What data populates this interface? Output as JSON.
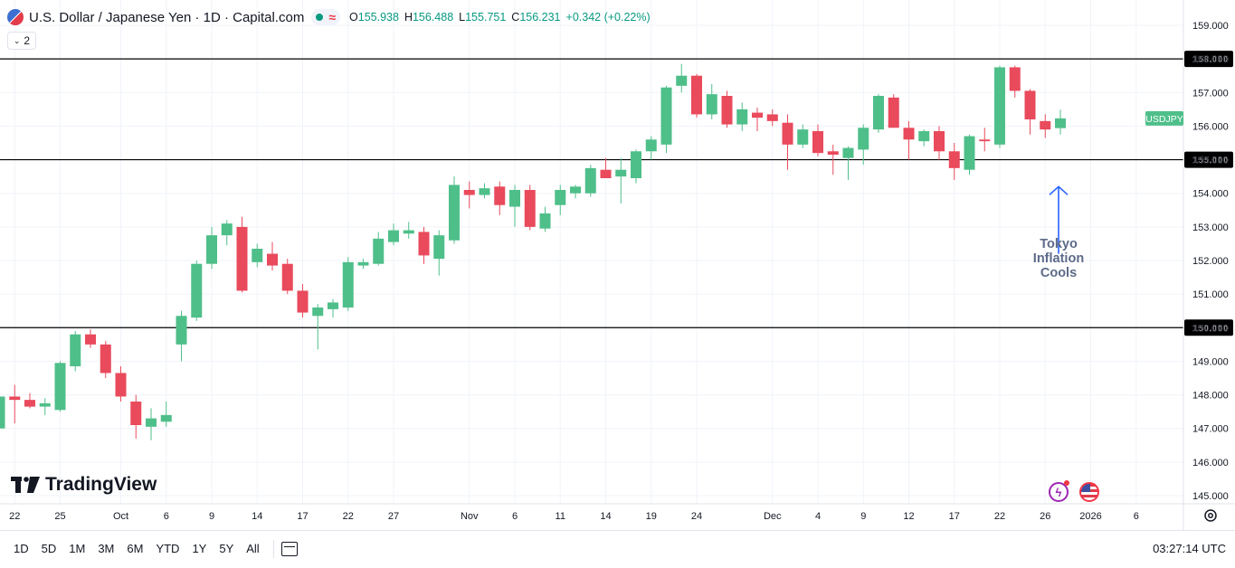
{
  "header": {
    "symbol_title": "U.S. Dollar / Japanese Yen · 1D · Capital.com",
    "ohlc": {
      "o_label": "O",
      "o": "155.938",
      "h_label": "H",
      "h": "156.488",
      "l_label": "L",
      "l": "155.751",
      "c_label": "C",
      "c": "156.231",
      "change": "+0.342 (+0.22%)"
    },
    "indicator_count": "2"
  },
  "logo_text": "TradingView",
  "annotation": {
    "line1": "Tokyo",
    "line2": "Inflation",
    "line3": "Cools"
  },
  "price_badge": "USDJPY",
  "bottom_bar": {
    "timeframes": [
      "1D",
      "5D",
      "1M",
      "3M",
      "6M",
      "YTD",
      "1Y",
      "5Y",
      "All"
    ],
    "clock": "03:27:14 UTC"
  },
  "colors": {
    "up": "#4fbf8a",
    "down": "#e94a5c",
    "level_line": "#000000",
    "arrow": "#2962ff",
    "grid": "#f0f3fa"
  },
  "chart_data": {
    "type": "candlestick",
    "symbol": "USDJPY",
    "ylim": [
      144.8,
      159.6
    ],
    "y_ticks": [
      "145.000",
      "146.000",
      "147.000",
      "148.000",
      "149.000",
      "150.000",
      "151.000",
      "152.000",
      "153.000",
      "154.000",
      "155.000",
      "156.000",
      "157.000",
      "158.000",
      "159.000"
    ],
    "x_ticks": [
      {
        "label": "22",
        "i": 1
      },
      {
        "label": "25",
        "i": 4
      },
      {
        "label": "Oct",
        "i": 8
      },
      {
        "label": "6",
        "i": 11
      },
      {
        "label": "9",
        "i": 14
      },
      {
        "label": "14",
        "i": 17
      },
      {
        "label": "17",
        "i": 20
      },
      {
        "label": "22",
        "i": 23
      },
      {
        "label": "27",
        "i": 26
      },
      {
        "label": "Nov",
        "i": 31
      },
      {
        "label": "6",
        "i": 34
      },
      {
        "label": "11",
        "i": 37
      },
      {
        "label": "14",
        "i": 40
      },
      {
        "label": "19",
        "i": 43
      },
      {
        "label": "24",
        "i": 46
      },
      {
        "label": "Dec",
        "i": 51
      },
      {
        "label": "4",
        "i": 54
      },
      {
        "label": "9",
        "i": 57
      },
      {
        "label": "12",
        "i": 60
      },
      {
        "label": "17",
        "i": 63
      },
      {
        "label": "22",
        "i": 66
      },
      {
        "label": "26",
        "i": 69
      },
      {
        "label": "2026",
        "i": 72
      },
      {
        "label": "6",
        "i": 75
      }
    ],
    "horizontal_levels": [
      {
        "value": 158.0,
        "label": "158.000"
      },
      {
        "value": 155.0,
        "label": "155.000"
      },
      {
        "value": 150.0,
        "label": "150.000"
      }
    ],
    "last_price": 156.231,
    "candles": [
      [
        147.0,
        148.0,
        146.9,
        147.95
      ],
      [
        147.95,
        148.3,
        147.15,
        147.85
      ],
      [
        147.85,
        148.05,
        147.6,
        147.65
      ],
      [
        147.65,
        147.9,
        147.4,
        147.75
      ],
      [
        147.55,
        149.0,
        147.5,
        148.95
      ],
      [
        148.85,
        149.9,
        148.7,
        149.8
      ],
      [
        149.8,
        149.95,
        149.4,
        149.5
      ],
      [
        149.5,
        149.6,
        148.5,
        148.65
      ],
      [
        148.65,
        148.85,
        147.8,
        147.95
      ],
      [
        147.8,
        148.0,
        146.7,
        147.1
      ],
      [
        147.05,
        147.6,
        146.65,
        147.3
      ],
      [
        147.2,
        147.8,
        147.05,
        147.4
      ],
      [
        149.5,
        150.5,
        149.0,
        150.35
      ],
      [
        150.3,
        152.0,
        150.2,
        151.9
      ],
      [
        151.9,
        153.0,
        151.75,
        152.75
      ],
      [
        152.75,
        153.2,
        152.45,
        153.1
      ],
      [
        153.0,
        153.3,
        151.05,
        151.1
      ],
      [
        151.95,
        152.5,
        151.8,
        152.35
      ],
      [
        152.2,
        152.55,
        151.7,
        151.85
      ],
      [
        151.9,
        152.05,
        151.0,
        151.1
      ],
      [
        151.1,
        151.3,
        150.3,
        150.45
      ],
      [
        150.35,
        150.7,
        149.35,
        150.6
      ],
      [
        150.55,
        150.85,
        150.3,
        150.75
      ],
      [
        150.6,
        152.1,
        150.5,
        151.95
      ],
      [
        151.85,
        152.05,
        151.75,
        151.95
      ],
      [
        151.9,
        152.85,
        151.85,
        152.65
      ],
      [
        152.55,
        153.1,
        152.45,
        152.9
      ],
      [
        152.8,
        153.15,
        152.65,
        152.9
      ],
      [
        152.85,
        153.0,
        151.9,
        152.15
      ],
      [
        152.05,
        152.9,
        151.55,
        152.75
      ],
      [
        152.6,
        154.5,
        152.5,
        154.25
      ],
      [
        154.1,
        154.35,
        153.55,
        153.95
      ],
      [
        153.95,
        154.3,
        153.85,
        154.15
      ],
      [
        154.2,
        154.35,
        153.35,
        153.65
      ],
      [
        153.6,
        154.25,
        153.0,
        154.1
      ],
      [
        154.1,
        154.25,
        152.9,
        153.0
      ],
      [
        152.95,
        153.6,
        152.85,
        153.4
      ],
      [
        153.65,
        154.25,
        153.35,
        154.1
      ],
      [
        154.0,
        154.25,
        153.85,
        154.2
      ],
      [
        154.0,
        154.85,
        153.9,
        154.75
      ],
      [
        154.7,
        155.05,
        154.5,
        154.45
      ],
      [
        154.5,
        155.05,
        153.7,
        154.7
      ],
      [
        154.45,
        155.3,
        154.3,
        155.25
      ],
      [
        155.25,
        155.7,
        155.0,
        155.6
      ],
      [
        155.45,
        157.2,
        155.2,
        157.15
      ],
      [
        157.2,
        157.85,
        157.0,
        157.5
      ],
      [
        157.5,
        157.55,
        156.25,
        156.35
      ],
      [
        156.35,
        157.25,
        156.2,
        156.95
      ],
      [
        156.9,
        157.05,
        155.95,
        156.05
      ],
      [
        156.05,
        156.7,
        155.85,
        156.5
      ],
      [
        156.4,
        156.55,
        155.85,
        156.25
      ],
      [
        156.35,
        156.5,
        156.0,
        156.15
      ],
      [
        156.1,
        156.35,
        154.7,
        155.45
      ],
      [
        155.45,
        156.05,
        155.35,
        155.9
      ],
      [
        155.85,
        156.05,
        155.1,
        155.2
      ],
      [
        155.25,
        155.45,
        154.55,
        155.15
      ],
      [
        155.05,
        155.4,
        154.4,
        155.35
      ],
      [
        155.3,
        156.05,
        154.85,
        155.95
      ],
      [
        155.9,
        156.95,
        155.8,
        156.9
      ],
      [
        156.85,
        156.95,
        155.95,
        155.95
      ],
      [
        155.95,
        156.15,
        155.0,
        155.6
      ],
      [
        155.55,
        155.9,
        155.4,
        155.85
      ],
      [
        155.85,
        156.0,
        155.0,
        155.25
      ],
      [
        155.25,
        155.5,
        154.4,
        154.75
      ],
      [
        154.7,
        155.75,
        154.55,
        155.7
      ],
      [
        155.6,
        155.95,
        155.25,
        155.55
      ],
      [
        155.45,
        157.8,
        155.35,
        157.75
      ],
      [
        157.75,
        157.8,
        156.85,
        157.05
      ],
      [
        157.05,
        157.1,
        155.75,
        156.2
      ],
      [
        156.15,
        156.35,
        155.65,
        155.9
      ],
      [
        155.94,
        156.49,
        155.75,
        156.23
      ]
    ]
  }
}
